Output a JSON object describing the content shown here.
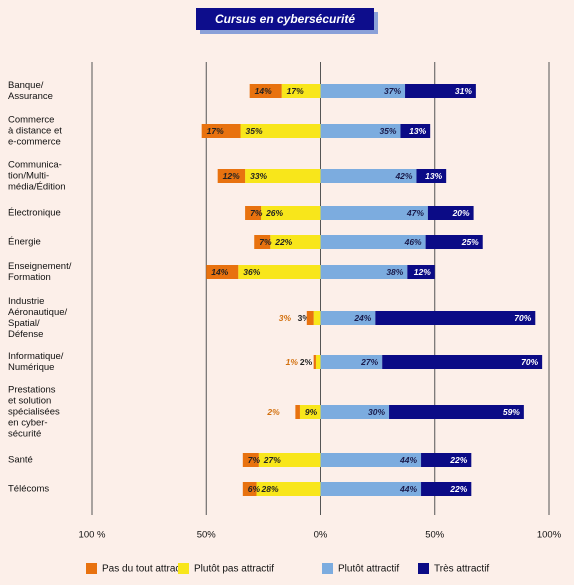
{
  "chart_data": {
    "type": "diverging-bar",
    "title": "Cursus en cybersécurité",
    "categories": [
      "Banque/\nAssurance",
      "Commerce\nà distance et\ne-commerce",
      "Communica-\ntion/Multi-\nmédia/Édition",
      "Électronique",
      "Énergie",
      "Enseignement/\nFormation",
      "Industrie\nAéronautique/\nSpatial/\nDéfense",
      "Informatique/\nNumérique",
      "Prestations\net solution\nspécialisées\nen cyber-\nsécurité",
      "Santé",
      "Télécoms"
    ],
    "series": [
      {
        "name": "Pas du tout attractif",
        "color": "#e8720f",
        "side": "negative",
        "values": [
          14,
          17,
          12,
          7,
          7,
          14,
          3,
          1,
          2,
          7,
          6
        ],
        "value_labels": [
          "14%",
          "17%",
          "12%",
          "7%",
          "7%",
          "14%",
          "3%",
          "1%",
          "2%",
          "7%",
          "6%"
        ]
      },
      {
        "name": "Plutôt pas attractif",
        "color": "#f8e61b",
        "side": "negative",
        "values": [
          17,
          35,
          33,
          26,
          22,
          36,
          3,
          2,
          9,
          27,
          28
        ],
        "value_labels": [
          "17%",
          "35%",
          "33%",
          "26%",
          "22%",
          "36%",
          "3%",
          "2%",
          "9%",
          "27%",
          "28%"
        ]
      },
      {
        "name": "Plutôt attractif",
        "color": "#7cacdf",
        "side": "positive",
        "values": [
          37,
          35,
          42,
          47,
          46,
          38,
          24,
          27,
          30,
          44,
          44
        ],
        "value_labels": [
          "37%",
          "35%",
          "42%",
          "47%",
          "46%",
          "38%",
          "24%",
          "27%",
          "30%",
          "44%",
          "44%"
        ]
      },
      {
        "name": "Très attractif",
        "color": "#0b0b86",
        "side": "positive",
        "values": [
          31,
          13,
          13,
          20,
          25,
          12,
          70,
          70,
          59,
          22,
          22
        ],
        "value_labels": [
          "31%",
          "13%",
          "13%",
          "20%",
          "25%",
          "12%",
          "70%",
          "70%",
          "59%",
          "22%",
          "22%"
        ]
      }
    ],
    "xlim": [
      -100,
      100
    ],
    "xticks": [
      {
        "value": -100,
        "label": "100 %"
      },
      {
        "value": -50,
        "label": "50%"
      },
      {
        "value": 0,
        "label": "0%"
      },
      {
        "value": 50,
        "label": "50%"
      },
      {
        "value": 100,
        "label": "100%"
      }
    ],
    "grid": true,
    "legend": "bottom"
  }
}
